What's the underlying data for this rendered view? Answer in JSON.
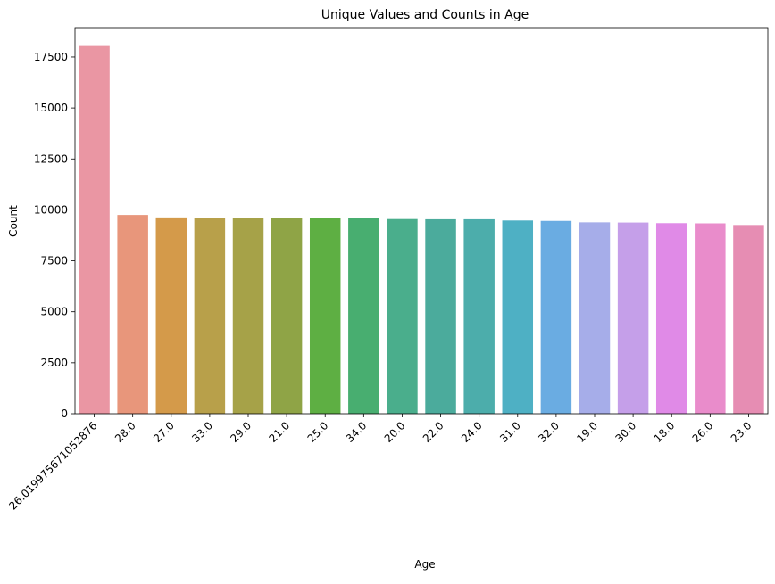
{
  "chart_data": {
    "type": "bar",
    "title": "Unique Values and Counts in Age",
    "xlabel": "Age",
    "ylabel": "Count",
    "categories": [
      "26.019975671052876",
      "28.0",
      "27.0",
      "33.0",
      "29.0",
      "21.0",
      "25.0",
      "34.0",
      "20.0",
      "22.0",
      "24.0",
      "31.0",
      "32.0",
      "19.0",
      "30.0",
      "18.0",
      "26.0",
      "23.0"
    ],
    "values": [
      18040,
      9750,
      9630,
      9620,
      9620,
      9590,
      9580,
      9580,
      9550,
      9540,
      9540,
      9480,
      9460,
      9390,
      9380,
      9350,
      9340,
      9260
    ],
    "ylim": [
      0,
      18942
    ],
    "yticks": [
      0,
      2500,
      5000,
      7500,
      10000,
      12500,
      15000,
      17500
    ],
    "ytick_labels": [
      "0",
      "2500",
      "5000",
      "7500",
      "10000",
      "12500",
      "15000",
      "17500"
    ],
    "grid": false,
    "colors": [
      "#ea96a3",
      "#e8967b",
      "#d49a4a",
      "#b8a04a",
      "#a6a248",
      "#8fa446",
      "#5eaf43",
      "#48ae70",
      "#4aae8c",
      "#4bab9c",
      "#4cadab",
      "#4eb0c4",
      "#6aace2",
      "#a6ade9",
      "#c59fe9",
      "#e08ae7",
      "#e98ccb",
      "#e68db3"
    ]
  }
}
